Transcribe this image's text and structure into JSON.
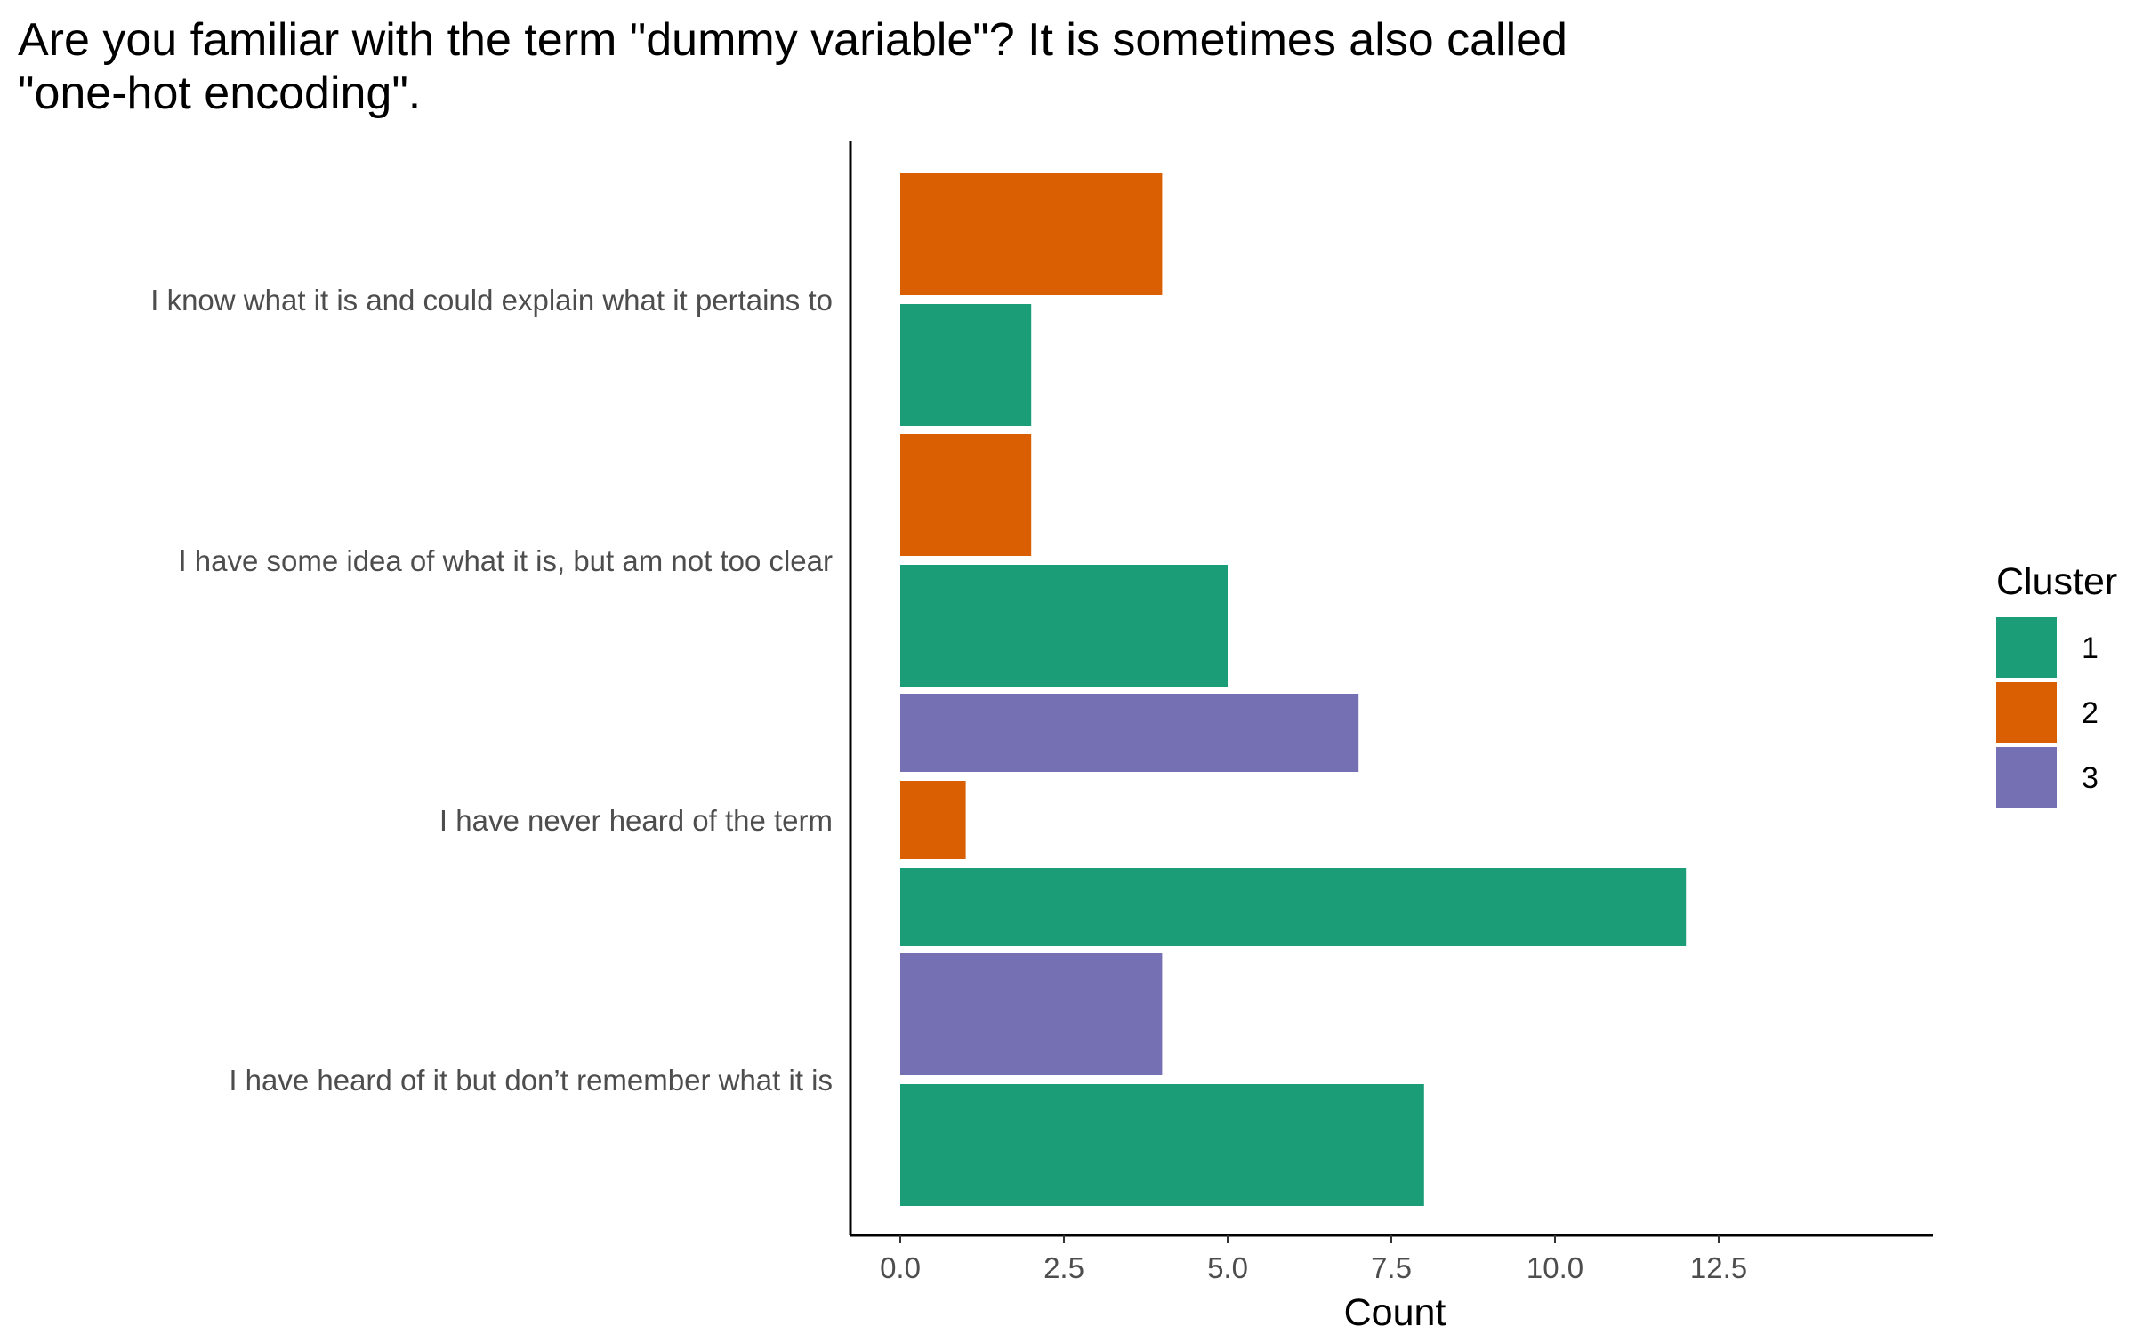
{
  "chart_data": {
    "type": "bar",
    "orientation": "horizontal",
    "title": "Are you familiar with the term \"dummy variable\"? It is sometimes also called \"one-hot encoding\".",
    "title_lines": [
      "Are you familiar with the term \"dummy variable\"? It is sometimes also called",
      "\"one-hot encoding\"."
    ],
    "xlabel": "Count",
    "ylabel": "",
    "xlim": [
      0,
      12.5
    ],
    "xticks": [
      0,
      2.5,
      5,
      7.5,
      10,
      12.5
    ],
    "xtick_labels": [
      "0.0",
      "2.5",
      "5.0",
      "7.5",
      "10.0",
      "12.5"
    ],
    "grid": false,
    "categories": [
      "I know what it is and could explain what it pertains to",
      "I have some idea of what it is, but am not too clear",
      "I have never heard of the term",
      "I have heard of it but don’t remember what it is"
    ],
    "series": [
      {
        "name": "1",
        "color": "#1b9e77",
        "values": [
          2,
          5,
          12,
          8
        ]
      },
      {
        "name": "2",
        "color": "#d95f02",
        "values": [
          4,
          2,
          1,
          null
        ]
      },
      {
        "name": "3",
        "color": "#7570b3",
        "values": [
          null,
          null,
          7,
          4
        ]
      }
    ],
    "legend": {
      "title": "Cluster",
      "position": "right",
      "items": [
        {
          "label": "1",
          "color": "#1b9e77"
        },
        {
          "label": "2",
          "color": "#d95f02"
        },
        {
          "label": "3",
          "color": "#7570b3"
        }
      ]
    }
  }
}
